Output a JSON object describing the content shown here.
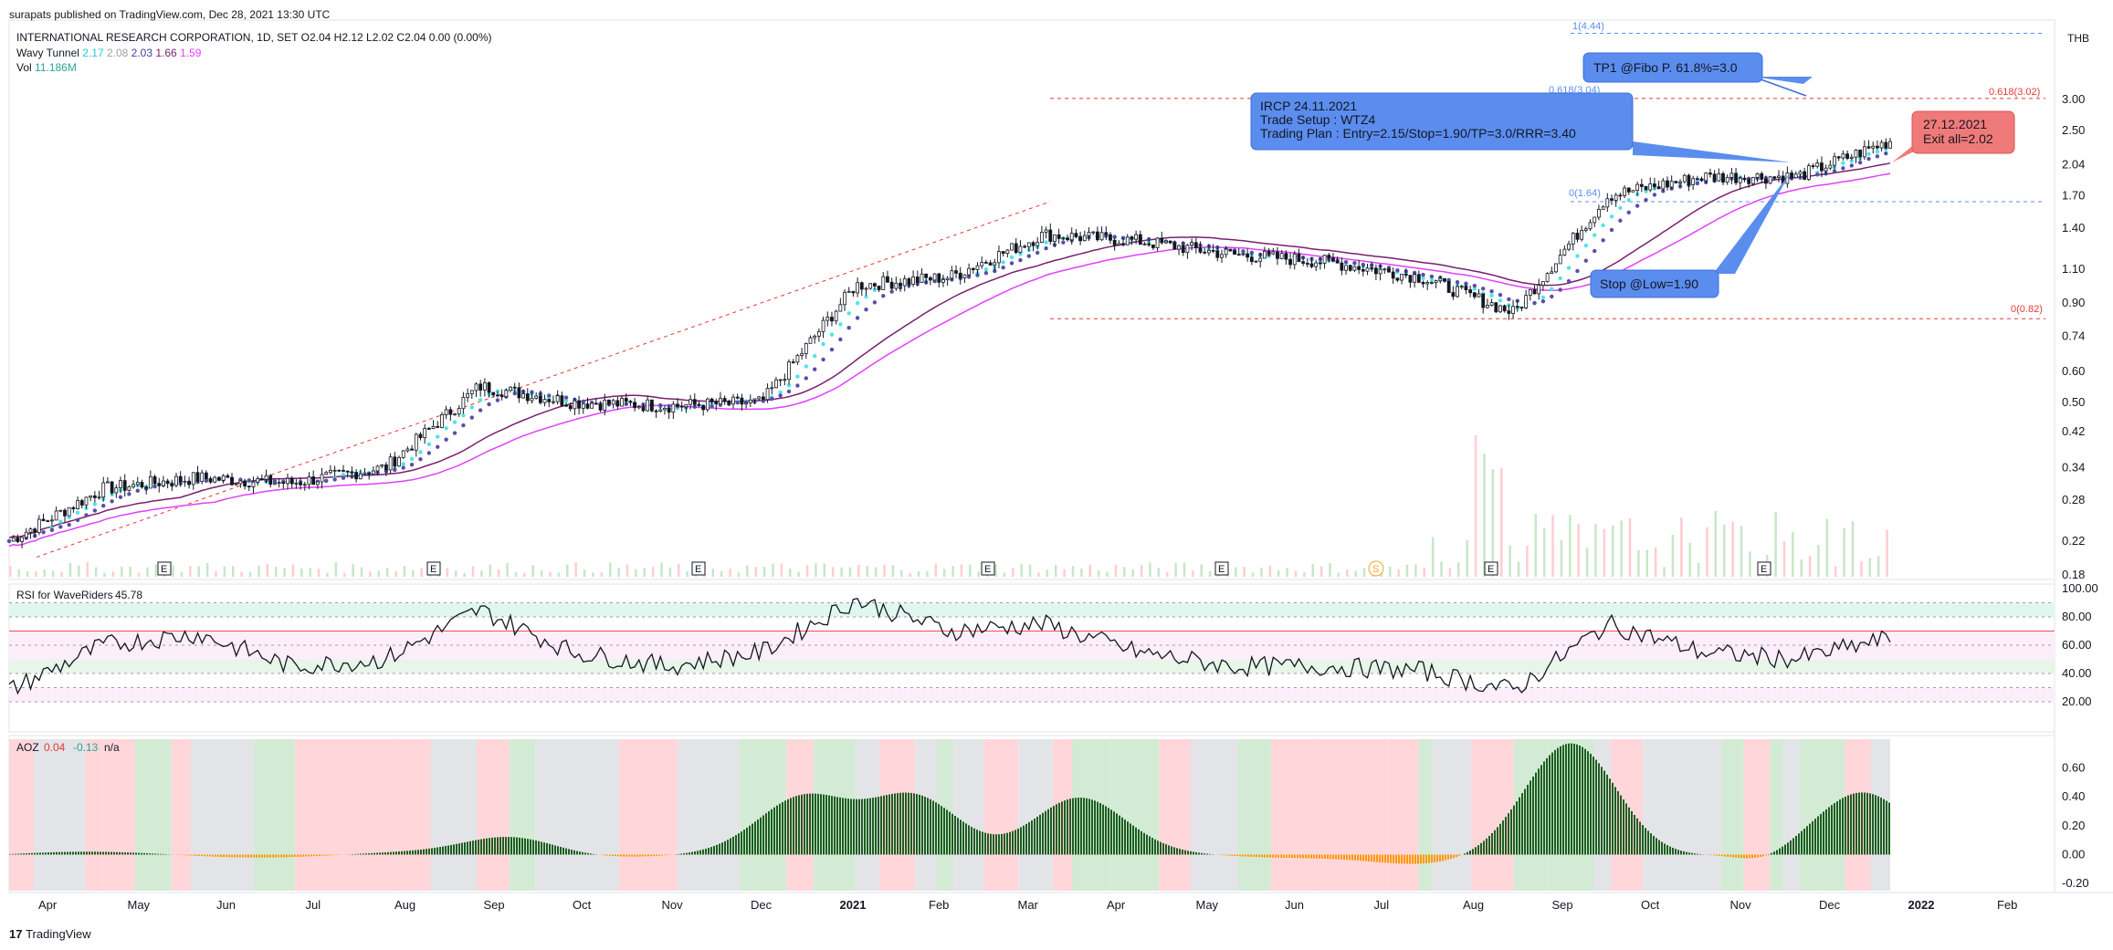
{
  "header": {
    "published": "surapats published on TradingView.com, Dec 28, 2021 13:30 UTC",
    "symbol_line": "INTERNATIONAL RESEARCH CORPORATION, 1D, SET",
    "ohlc": {
      "open": "O2.04",
      "high": "H2.12",
      "low": "L2.02",
      "close": "C2.04",
      "change": "0.00 (0.00%)"
    },
    "wavy_tunnel": {
      "label": "Wavy Tunnel",
      "v1": "2.17",
      "v2": "2.08",
      "v3": "2.03",
      "v4": "1.66",
      "v5": "1.59"
    },
    "vol": {
      "label": "Vol",
      "value": "11.186M"
    }
  },
  "rsi_panel": {
    "label": "RSI for WaveRiders",
    "value": "45.78"
  },
  "aoz_panel": {
    "label": "AOZ",
    "v1": "0.04",
    "v2": "-0.13",
    "na": "n/a"
  },
  "currency": "THB",
  "price_axis": [
    "3.00",
    "2.50",
    "2.04",
    "1.70",
    "1.40",
    "1.10",
    "0.90",
    "0.74",
    "0.60",
    "0.50",
    "0.42",
    "0.34",
    "0.28",
    "0.22",
    "0.18"
  ],
  "rsi_axis": [
    "100.00",
    "80.00",
    "60.00",
    "40.00",
    "20.00"
  ],
  "aoz_axis": [
    "0.60",
    "0.40",
    "0.20",
    "0.00",
    "-0.20"
  ],
  "time_axis": [
    "Apr",
    "May",
    "Jun",
    "Jul",
    "Aug",
    "Sep",
    "Oct",
    "Nov",
    "Dec",
    "2021",
    "Feb",
    "Mar",
    "Apr",
    "May",
    "Jun",
    "Jul",
    "Aug",
    "Sep",
    "Oct",
    "Nov",
    "Dec",
    "2022",
    "Feb"
  ],
  "annotations": {
    "tp1": "TP1 @Fibo P. 61.8%=3.0",
    "plan_lines": [
      "IRCP 24.11.2021",
      "Trade Setup : WTZ4",
      "Trading Plan : Entry=2.15/Stop=1.90/TP=3.0/RRR=3.40"
    ],
    "exit_lines": [
      "27.12.2021",
      "Exit all=2.02"
    ],
    "stop": "Stop @Low=1.90",
    "fib_labels": {
      "f1": "1(4.44)",
      "f0618a": "0.618(3.04)",
      "f0618b": "0.618(3.02)",
      "f0": "0(1.64)",
      "f0b": "0(0.82)"
    },
    "event_E": "E",
    "event_S": "S"
  },
  "footer": {
    "brand": "TradingView"
  },
  "colors": {
    "up": "#131722",
    "tunnel_fast": "#4ee6e6",
    "tunnel_slow": "#5b4ea6",
    "ema_a": "#7a1f6e",
    "ema_b": "#e040fb",
    "fib": "#e53935",
    "callout_blue": "#5b8def",
    "callout_red": "#f07a7a"
  },
  "chart_data": {
    "type": "line",
    "title": "INTERNATIONAL RESEARCH CORPORATION, 1D, SET",
    "x": [
      "2020-04",
      "2020-05",
      "2020-06",
      "2020-07",
      "2020-08",
      "2020-09",
      "2020-10",
      "2020-11",
      "2020-12",
      "2021-01",
      "2021-02",
      "2021-03",
      "2021-04",
      "2021-05",
      "2021-06",
      "2021-07",
      "2021-08",
      "2021-09",
      "2021-10",
      "2021-11",
      "2021-12"
    ],
    "ylim": [
      0.18,
      4.6
    ],
    "y_scale": "log",
    "series": [
      {
        "values": [
          0.22,
          0.3,
          0.32,
          0.31,
          0.34,
          0.55,
          0.5,
          0.49,
          0.5,
          1.0,
          1.05,
          1.35,
          1.3,
          1.2,
          1.15,
          1.05,
          0.85,
          1.7,
          1.9,
          1.9,
          2.35
        ]
      }
    ]
  },
  "rsi_data": {
    "ylim": [
      0,
      100
    ],
    "values": [
      28,
      60,
      68,
      45,
      50,
      85,
      55,
      45,
      55,
      92,
      70,
      75,
      55,
      45,
      45,
      42,
      28,
      75,
      55,
      50,
      65
    ]
  },
  "aoz_data": {
    "ylim": [
      -0.25,
      0.8
    ]
  }
}
